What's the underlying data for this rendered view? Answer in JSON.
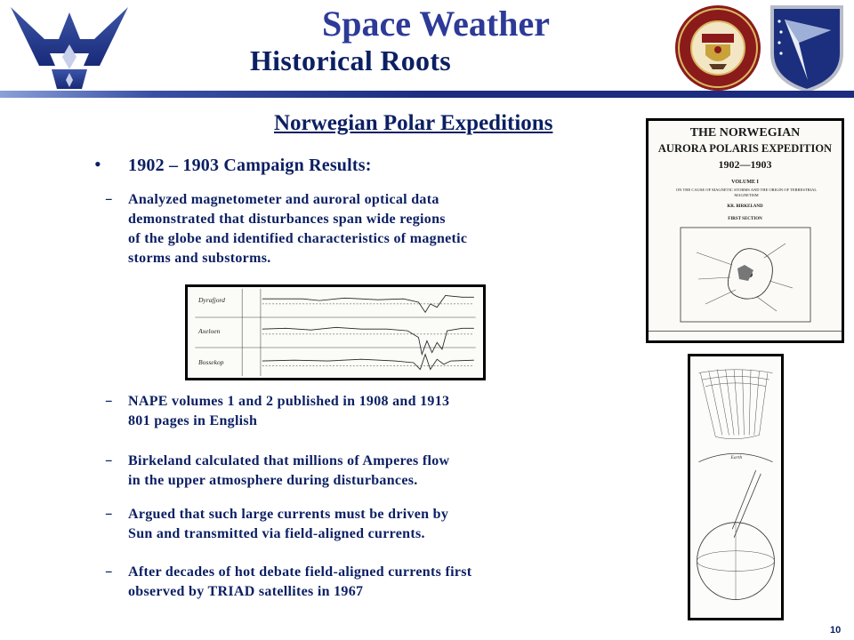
{
  "header": {
    "title": "Space Weather",
    "subtitle": "Historical Roots"
  },
  "section": {
    "heading": "Norwegian Polar Expeditions"
  },
  "bullet": {
    "text": "1902 – 1903 Campaign Results:"
  },
  "subitems": [
    {
      "lines": [
        "Analyzed  magnetometer  and auroral optical data",
        "demonstrated  that disturbances  span wide regions",
        "of  the globe and identified characteristics  of magnetic",
        "storms and substorms."
      ]
    },
    {
      "lines": [
        "NAPE volumes 1 and 2 published in 1908 and 1913",
        "801 pages in English"
      ]
    },
    {
      "lines": [
        "Birkeland calculated that millions of Amperes  flow",
        "in the upper atmosphere during disturbances."
      ]
    },
    {
      "lines": [
        "Argued  that such large currents must be driven by",
        "Sun and transmitted  via field-aligned currents."
      ]
    },
    {
      "lines": [
        "After decades of hot debate field-aligned currents first",
        "observed by TRIAD satellites in 1967"
      ]
    }
  ],
  "magnetogram": {
    "stations": [
      "Dyrafjord",
      "Axeloen",
      "Bossekop"
    ]
  },
  "book_cover": {
    "title_line1": "THE NORWEGIAN",
    "title_line2": "AURORA POLARIS EXPEDITION",
    "years": "1902—1903",
    "volume": "VOLUME I",
    "subtitle": "ON THE CAUSE OF MAGNETIC STORMS AND THE ORIGIN OF TERRESTRIAL MAGNETISM",
    "author": "KR. BIRKELAND",
    "section": "FIRST SECTION"
  },
  "terrella": {
    "label": "Earth"
  },
  "page_number": "10",
  "colors": {
    "text": "#0b1f63",
    "title": "#2d3a97",
    "rule": "#1c2d80"
  }
}
